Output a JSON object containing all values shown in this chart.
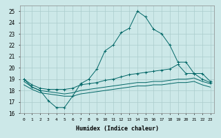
{
  "title": "",
  "xlabel": "Humidex (Indice chaleur)",
  "ylabel": "",
  "bg_color": "#cce8e8",
  "grid_color": "#aacccc",
  "line_color": "#006666",
  "xlim": [
    -0.5,
    23.5
  ],
  "ylim": [
    16,
    25.5
  ],
  "xticks": [
    0,
    1,
    2,
    3,
    4,
    5,
    6,
    7,
    8,
    9,
    10,
    11,
    12,
    13,
    14,
    15,
    16,
    17,
    18,
    19,
    20,
    21,
    22,
    23
  ],
  "yticks": [
    16,
    17,
    18,
    19,
    20,
    21,
    22,
    23,
    24,
    25
  ],
  "series": [
    {
      "x": [
        0,
        1,
        2,
        3,
        4,
        5,
        6,
        7,
        8,
        9,
        10,
        11,
        12,
        13,
        14,
        15,
        16,
        17,
        18,
        19,
        20,
        21,
        22,
        23
      ],
      "y": [
        19.0,
        18.3,
        18.0,
        17.1,
        16.5,
        16.5,
        17.5,
        18.6,
        19.0,
        19.9,
        21.5,
        22.0,
        23.1,
        23.5,
        25.0,
        24.5,
        23.4,
        23.0,
        22.0,
        20.5,
        20.5,
        19.5,
        19.5,
        18.8
      ],
      "marker": "+"
    },
    {
      "x": [
        0,
        1,
        2,
        3,
        4,
        5,
        6,
        7,
        8,
        9,
        10,
        11,
        12,
        13,
        14,
        15,
        16,
        17,
        18,
        19,
        20,
        21,
        22,
        23
      ],
      "y": [
        19.0,
        18.5,
        18.2,
        18.1,
        18.1,
        18.1,
        18.2,
        18.5,
        18.6,
        18.7,
        18.9,
        19.0,
        19.2,
        19.4,
        19.5,
        19.6,
        19.7,
        19.8,
        19.9,
        20.3,
        19.5,
        19.5,
        19.0,
        18.7
      ],
      "marker": "+"
    },
    {
      "x": [
        0,
        1,
        2,
        3,
        4,
        5,
        6,
        7,
        8,
        9,
        10,
        11,
        12,
        13,
        14,
        15,
        16,
        17,
        18,
        19,
        20,
        21,
        22,
        23
      ],
      "y": [
        18.8,
        18.3,
        18.0,
        17.9,
        17.8,
        17.7,
        17.8,
        18.0,
        18.1,
        18.2,
        18.3,
        18.4,
        18.5,
        18.6,
        18.7,
        18.7,
        18.8,
        18.8,
        18.9,
        19.0,
        19.0,
        19.1,
        18.8,
        18.6
      ],
      "marker": null
    },
    {
      "x": [
        0,
        1,
        2,
        3,
        4,
        5,
        6,
        7,
        8,
        9,
        10,
        11,
        12,
        13,
        14,
        15,
        16,
        17,
        18,
        19,
        20,
        21,
        22,
        23
      ],
      "y": [
        18.5,
        18.1,
        17.8,
        17.7,
        17.6,
        17.5,
        17.5,
        17.7,
        17.8,
        17.9,
        18.0,
        18.1,
        18.2,
        18.3,
        18.4,
        18.4,
        18.5,
        18.5,
        18.6,
        18.7,
        18.7,
        18.8,
        18.5,
        18.3
      ],
      "marker": null
    }
  ]
}
